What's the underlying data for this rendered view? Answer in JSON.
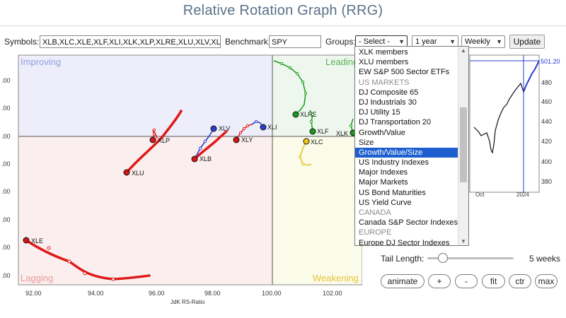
{
  "title": "Relative Rotation Graph (RRG)",
  "toolbar": {
    "symbols_label": "Symbols:",
    "symbols_value": "XLB,XLC,XLE,XLF,XLI,XLK,XLP,XLRE,XLU,XLV,XL",
    "benchmark_label": "Benchmark:",
    "benchmark_value": "SPY",
    "groups_label": "Groups:",
    "groups_value": "- Select -",
    "period_value": "1 year",
    "frequency_value": "Weekly",
    "update_label": "Update"
  },
  "groups_dropdown": {
    "items": [
      {
        "label": "XLK members",
        "kind": "option"
      },
      {
        "label": "XLU members",
        "kind": "option"
      },
      {
        "label": "EW S&P 500 Sector ETFs",
        "kind": "option"
      },
      {
        "label": "US MARKETS",
        "kind": "group"
      },
      {
        "label": "DJ Composite 65",
        "kind": "option"
      },
      {
        "label": "DJ Industrials 30",
        "kind": "option"
      },
      {
        "label": "DJ Utility 15",
        "kind": "option"
      },
      {
        "label": "DJ Transportation 20",
        "kind": "option"
      },
      {
        "label": "Growth/Value",
        "kind": "option"
      },
      {
        "label": "Size",
        "kind": "option"
      },
      {
        "label": "Growth/Value/Size",
        "kind": "selected"
      },
      {
        "label": "US Industry Indexes",
        "kind": "option"
      },
      {
        "label": "Major Indexes",
        "kind": "option"
      },
      {
        "label": "Major Markets",
        "kind": "option"
      },
      {
        "label": "US Bond Maturities",
        "kind": "option"
      },
      {
        "label": "US Yield Curve",
        "kind": "option"
      },
      {
        "label": "CANADA",
        "kind": "group"
      },
      {
        "label": "Canada S&P Sector Indexes",
        "kind": "option"
      },
      {
        "label": "EUROPE",
        "kind": "group"
      },
      {
        "label": "Europe DJ Sector Indexes",
        "kind": "option"
      }
    ]
  },
  "rrg": {
    "quadrants": {
      "improving": "Improving",
      "leading": "Leading",
      "lagging": "Lagging",
      "weakening": "Weakening"
    },
    "x_axis_label": "JdK RS-Ratio",
    "x_ticks": [
      "92.00",
      "94.00",
      "96.00",
      "98.00",
      "100.00",
      "102.00"
    ],
    "y_ticks": [
      ".00",
      ".00",
      ".00",
      ".00",
      ".00",
      ".00",
      ".00",
      ".00"
    ],
    "colors": {
      "improving": "#eeeefa",
      "leading": "#eef7ee",
      "lagging": "#fbeeee",
      "weakening": "#fbfbe9",
      "improving_text": "#8f9ee0",
      "leading_text": "#56b356",
      "lagging_text": "#ea9a9a",
      "weakening_text": "#e6c53a"
    },
    "tails": [
      {
        "symbol": "XLE",
        "color": "#e01919"
      },
      {
        "symbol": "XLU",
        "color": "#e01919"
      },
      {
        "symbol": "XLP",
        "color": "#e01919"
      },
      {
        "symbol": "XLB",
        "color": "#e01919"
      },
      {
        "symbol": "XLY",
        "color": "#e01919"
      },
      {
        "symbol": "XLV",
        "color": "#2b3fcf"
      },
      {
        "symbol": "XLI",
        "color": "#2b3fcf"
      },
      {
        "symbol": "XLRE",
        "color": "#1c9a1c"
      },
      {
        "symbol": "XLF",
        "color": "#1c9a1c"
      },
      {
        "symbol": "XLK",
        "color": "#1c9a1c"
      },
      {
        "symbol": "XLC",
        "color": "#e6c21c"
      }
    ],
    "point_labels": {
      "xle": "XLE",
      "xlu": "XLU",
      "xlp": "XLP",
      "xlb": "XLB",
      "xly": "XLY",
      "xlv": "XLV",
      "xli": "XLI",
      "xlre": "XLRE",
      "xlf": "XLF",
      "xlk": "XLK",
      "xlc": "XLC"
    }
  },
  "price_chart": {
    "x_ticks": [
      "Oct",
      "2024"
    ],
    "y_ticks": [
      "480",
      "460",
      "440",
      "420",
      "400",
      "380"
    ],
    "last_value_label": "501.20",
    "line_color": "#111111",
    "highlight_color": "#2b3fcf"
  },
  "bottom_controls": {
    "tail_length_label": "Tail Length:",
    "tail_length_value": "5 weeks",
    "tail_length_fraction": 0.12,
    "animate_label": "animate",
    "plus_label": "+",
    "minus_label": "-",
    "fit_label": "fit",
    "ctr_label": "ctr",
    "max_label": "max"
  }
}
